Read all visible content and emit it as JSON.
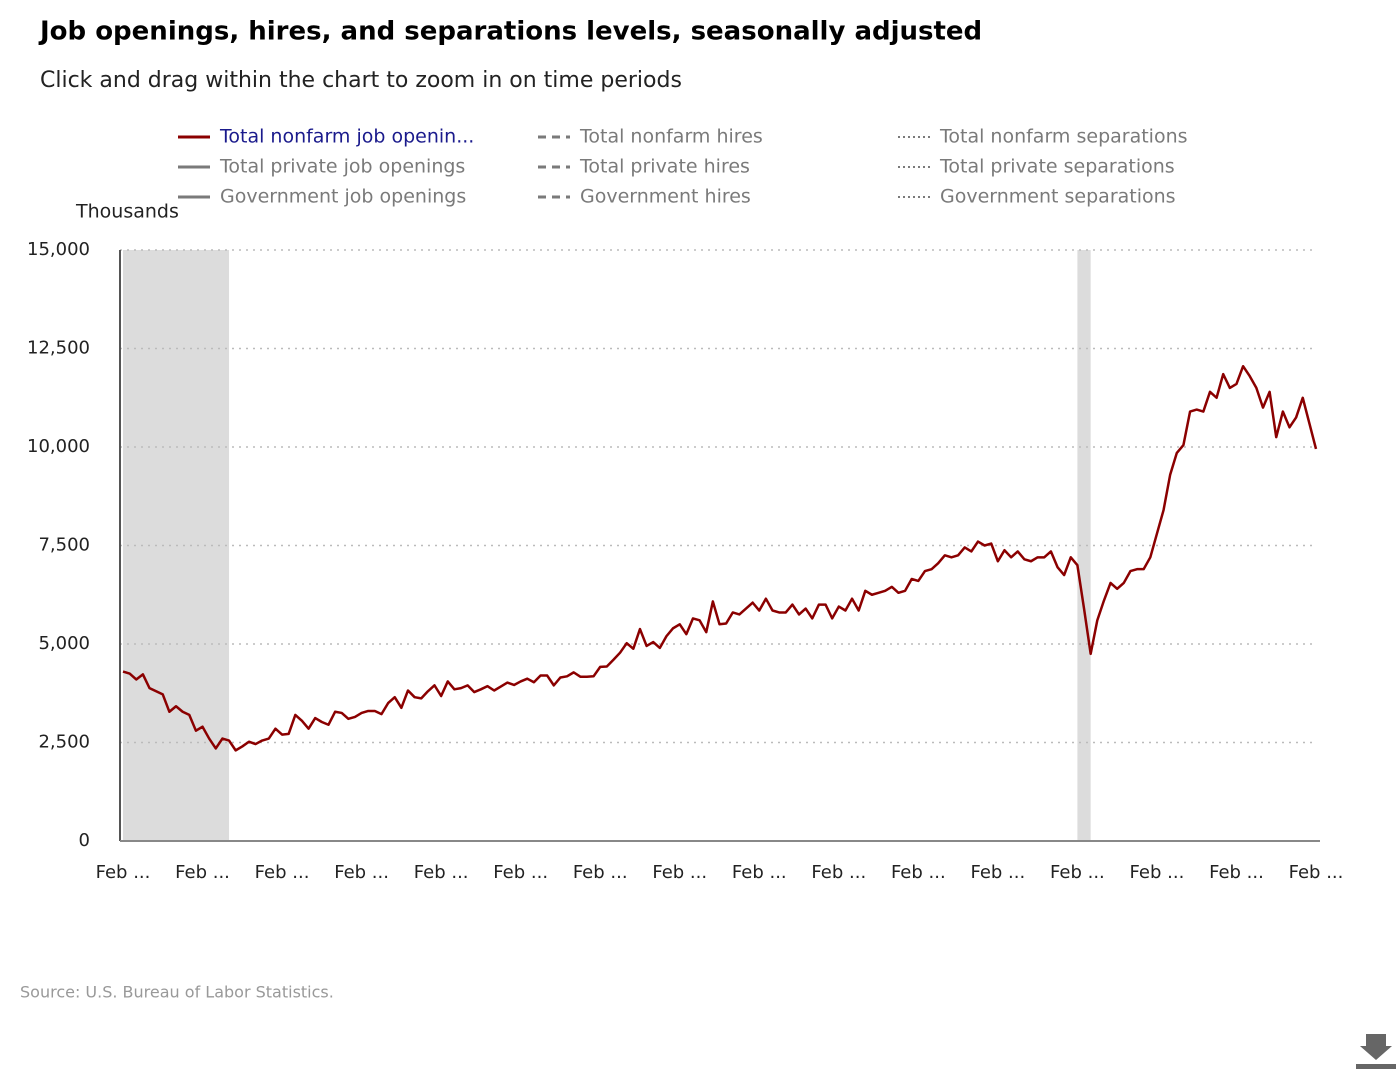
{
  "title": "Job openings, hires, and separations levels, seasonally adjusted",
  "subtitle": "Click and drag within the chart to zoom in on time periods",
  "source": "Source: U.S. Bureau of Labor Statistics.",
  "chart_data": {
    "type": "line",
    "y_label": "Thousands",
    "ylim": [
      0,
      15000
    ],
    "yticks": [
      0,
      {
        "value": 2500,
        "label": "2,500"
      },
      {
        "value": 5000,
        "label": "5,000"
      },
      {
        "value": 7500,
        "label": "7,500"
      },
      {
        "value": 10000,
        "label": "10,000"
      },
      {
        "value": 12500,
        "label": "12,500"
      },
      {
        "value": 15000,
        "label": "15,000"
      }
    ],
    "xlim": [
      0,
      180
    ],
    "xticks": [
      {
        "value": 0,
        "label": "Feb ..."
      },
      {
        "value": 12,
        "label": "Feb ..."
      },
      {
        "value": 24,
        "label": "Feb ..."
      },
      {
        "value": 36,
        "label": "Feb ..."
      },
      {
        "value": 48,
        "label": "Feb ..."
      },
      {
        "value": 60,
        "label": "Feb ..."
      },
      {
        "value": 72,
        "label": "Feb ..."
      },
      {
        "value": 84,
        "label": "Feb ..."
      },
      {
        "value": 96,
        "label": "Feb ..."
      },
      {
        "value": 108,
        "label": "Feb ..."
      },
      {
        "value": 120,
        "label": "Feb ..."
      },
      {
        "value": 132,
        "label": "Feb ..."
      },
      {
        "value": 144,
        "label": "Feb ..."
      },
      {
        "value": 156,
        "label": "Feb ..."
      },
      {
        "value": 168,
        "label": "Feb ..."
      },
      {
        "value": 180,
        "label": "Feb ..."
      }
    ],
    "grid": true,
    "shaded_ranges": [
      [
        0,
        16
      ],
      [
        144,
        146
      ]
    ],
    "series": [
      {
        "name": "Total nonfarm job openin...",
        "color": "#8b0000",
        "style": "solid",
        "values": [
          4300,
          4250,
          4100,
          4230,
          3880,
          3800,
          3720,
          3280,
          3420,
          3280,
          3200,
          2800,
          2900,
          2600,
          2350,
          2600,
          2550,
          2300,
          2400,
          2520,
          2460,
          2550,
          2600,
          2850,
          2700,
          2720,
          3200,
          3050,
          2850,
          3120,
          3020,
          2950,
          3280,
          3250,
          3100,
          3150,
          3250,
          3300,
          3300,
          3220,
          3500,
          3650,
          3380,
          3820,
          3650,
          3620,
          3800,
          3950,
          3680,
          4050,
          3850,
          3880,
          3950,
          3780,
          3850,
          3930,
          3820,
          3920,
          4020,
          3960,
          4050,
          4120,
          4030,
          4200,
          4200,
          3950,
          4150,
          4180,
          4280,
          4170,
          4170,
          4180,
          4420,
          4430,
          4600,
          4780,
          5020,
          4880,
          5380,
          4950,
          5050,
          4900,
          5200,
          5400,
          5500,
          5250,
          5650,
          5600,
          5300,
          6080,
          5500,
          5520,
          5800,
          5750,
          5900,
          6050,
          5850,
          6150,
          5850,
          5800,
          5800,
          6000,
          5750,
          5900,
          5650,
          6000,
          6000,
          5650,
          5950,
          5850,
          6150,
          5850,
          6350,
          6250,
          6300,
          6350,
          6450,
          6300,
          6350,
          6650,
          6600,
          6850,
          6900,
          7050,
          7250,
          7200,
          7250,
          7450,
          7350,
          7600,
          7500,
          7550,
          7100,
          7380,
          7200,
          7350,
          7150,
          7100,
          7200,
          7200,
          7350,
          6950,
          6750,
          7200,
          7000,
          5900,
          4750,
          5600,
          6100,
          6550,
          6400,
          6550,
          6850,
          6900,
          6900,
          7200,
          7800,
          8400,
          9300,
          9850,
          10050,
          10900,
          10950,
          10900,
          11400,
          11250,
          11850,
          11500,
          11600,
          12050,
          11800,
          11500,
          11000,
          11400,
          10250,
          10900,
          10500,
          10750,
          11250,
          10600,
          9950
        ]
      }
    ],
    "hidden_series": [
      {
        "name": "Total nonfarm hires",
        "style": "dashed"
      },
      {
        "name": "Total nonfarm separations",
        "style": "dotted"
      },
      {
        "name": "Total private job openings",
        "style": "solid"
      },
      {
        "name": "Total private hires",
        "style": "dashed"
      },
      {
        "name": "Total private separations",
        "style": "dotted"
      },
      {
        "name": "Government job openings",
        "style": "solid"
      },
      {
        "name": "Government hires",
        "style": "dashed"
      },
      {
        "name": "Government separations",
        "style": "dotted"
      }
    ],
    "hidden_color": "#7a7a7a"
  }
}
